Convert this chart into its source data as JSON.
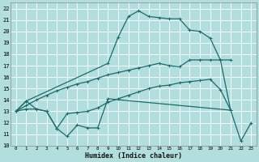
{
  "xlabel": "Humidex (Indice chaleur)",
  "bg_color": "#b2dede",
  "line_color": "#1a6b6b",
  "grid_color": "#ffffff",
  "xlim": [
    -0.5,
    23.5
  ],
  "ylim": [
    10,
    22.5
  ],
  "xtick_labels": [
    "0",
    "1",
    "2",
    "3",
    "4",
    "5",
    "6",
    "7",
    "8",
    "9",
    "10",
    "11",
    "12",
    "13",
    "14",
    "15",
    "16",
    "17",
    "18",
    "19",
    "20",
    "21",
    "22",
    "23"
  ],
  "ytick_labels": [
    "10",
    "11",
    "12",
    "13",
    "14",
    "15",
    "16",
    "17",
    "18",
    "19",
    "20",
    "21",
    "22"
  ],
  "series": [
    {
      "x": [
        0,
        1,
        2,
        3,
        4,
        5,
        6,
        7,
        8,
        9,
        21,
        22,
        23
      ],
      "y": [
        13.0,
        13.9,
        13.2,
        13.0,
        11.5,
        10.8,
        11.8,
        11.55,
        11.55,
        14.1,
        13.1,
        10.4,
        12.0
      ]
    },
    {
      "x": [
        0,
        1,
        2,
        3,
        4,
        5,
        6,
        7,
        8,
        9,
        10,
        11,
        12,
        13,
        14,
        15,
        16,
        17,
        18,
        19,
        20,
        21
      ],
      "y": [
        13.0,
        13.2,
        13.2,
        13.0,
        11.5,
        12.8,
        12.9,
        13.0,
        13.3,
        13.8,
        14.1,
        14.4,
        14.7,
        15.0,
        15.2,
        15.3,
        15.5,
        15.6,
        15.7,
        15.8,
        14.9,
        13.1
      ]
    },
    {
      "x": [
        0,
        1,
        2,
        3,
        4,
        5,
        6,
        7,
        8,
        9,
        10,
        11,
        12,
        13,
        14,
        15,
        16,
        17,
        18,
        19,
        20,
        21
      ],
      "y": [
        13.0,
        13.5,
        14.0,
        14.4,
        14.8,
        15.1,
        15.4,
        15.6,
        15.9,
        16.2,
        16.4,
        16.6,
        16.8,
        17.0,
        17.2,
        17.0,
        16.9,
        17.5,
        17.5,
        17.5,
        17.5,
        17.5
      ]
    },
    {
      "x": [
        0,
        1,
        9,
        10,
        11,
        12,
        13,
        14,
        15,
        16,
        17,
        18,
        19,
        20,
        21
      ],
      "y": [
        13.0,
        13.9,
        17.2,
        19.5,
        21.3,
        21.8,
        21.3,
        21.2,
        21.1,
        21.1,
        20.1,
        20.0,
        19.4,
        17.5,
        13.1
      ]
    }
  ]
}
